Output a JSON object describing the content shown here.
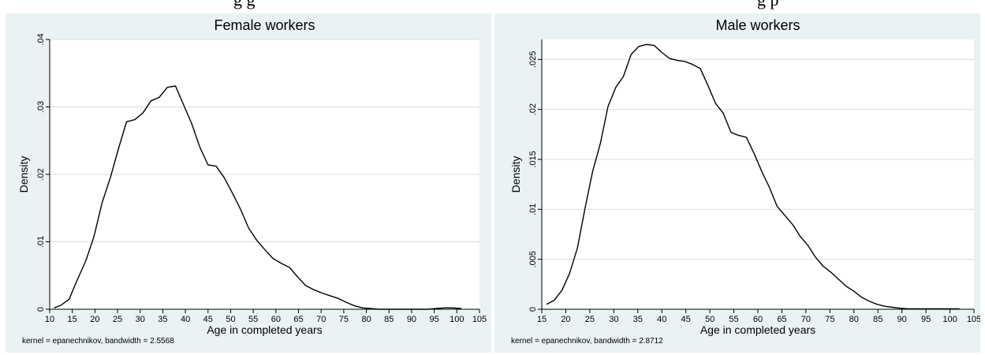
{
  "page": {
    "top_left_fragment": "g   g",
    "top_right_fragment": "g   p"
  },
  "chart_data": [
    {
      "type": "line",
      "title": "Female workers",
      "xlabel": "Age in completed years",
      "ylabel": "Density",
      "note": "kernel = epanechnikov, bandwidth = 2.5568",
      "xlim": [
        10,
        105
      ],
      "ylim": [
        0,
        0.04
      ],
      "xticks": [
        "10",
        "15",
        "20",
        "25",
        "30",
        "35",
        "40",
        "45",
        "50",
        "55",
        "60",
        "65",
        "70",
        "75",
        "80",
        "85",
        "90",
        "95",
        "100",
        "105"
      ],
      "yticks": [
        "0",
        ".01",
        ".02",
        ".03",
        ".04"
      ],
      "ytick_values": [
        0,
        0.01,
        0.02,
        0.03,
        0.04
      ],
      "grid": true,
      "series": [
        {
          "x": [
            11,
            12.5,
            14.3,
            16,
            18,
            19.8,
            21.6,
            23.4,
            25.2,
            27,
            28.8,
            30.6,
            32.4,
            34.2,
            36,
            37.8,
            39.6,
            41.4,
            43.2,
            45,
            46.8,
            48.6,
            50.4,
            52.2,
            54,
            55.8,
            57.6,
            59.4,
            61.2,
            63,
            64.8,
            66.6,
            68.4,
            70.2,
            72,
            73.8,
            75.6,
            77.4,
            79.2,
            81,
            82.8,
            84.6,
            86.4,
            88.2,
            90,
            91.8,
            93.6,
            95.4,
            97.2,
            99,
            101
          ],
          "y": [
            0.0002,
            0.0006,
            0.0015,
            0.0042,
            0.0072,
            0.0108,
            0.0158,
            0.0195,
            0.0238,
            0.0278,
            0.0281,
            0.0291,
            0.0309,
            0.0314,
            0.0329,
            0.0331,
            0.0303,
            0.0275,
            0.024,
            0.0214,
            0.0212,
            0.0195,
            0.0172,
            0.0148,
            0.012,
            0.0102,
            0.0088,
            0.0075,
            0.0068,
            0.0062,
            0.0048,
            0.0035,
            0.0029,
            0.0024,
            0.002,
            0.0016,
            0.001,
            0.0005,
            0.0002,
            0.0001,
            0,
            0,
            0,
            0,
            0,
            0,
            0,
            0.0001,
            0.0002,
            0.0002,
            0.0001
          ]
        }
      ]
    },
    {
      "type": "line",
      "title": "Male workers",
      "xlabel": "Age in completed years",
      "ylabel": "Density",
      "note": "kernel = epanechnikov, bandwidth = 2.8712",
      "xlim": [
        15,
        105
      ],
      "ylim": [
        0,
        0.027
      ],
      "xticks": [
        "15",
        "20",
        "25",
        "30",
        "35",
        "40",
        "45",
        "50",
        "55",
        "60",
        "65",
        "70",
        "75",
        "80",
        "85",
        "90",
        "95",
        "100",
        "105"
      ],
      "yticks": [
        "0",
        ".005",
        ".01",
        ".015",
        ".02",
        ".025"
      ],
      "ytick_values": [
        0,
        0.005,
        0.01,
        0.015,
        0.02,
        0.025
      ],
      "grid": true,
      "series": [
        {
          "x": [
            16,
            17.6,
            19.2,
            20.8,
            22.4,
            24,
            25.6,
            27.2,
            28.8,
            30.4,
            32,
            33.6,
            35.2,
            36.8,
            38.4,
            40,
            41.6,
            43.2,
            44.8,
            46.4,
            48,
            49.6,
            51.2,
            52.8,
            54.4,
            56,
            57.6,
            59.2,
            60.8,
            62.4,
            64,
            65.6,
            67.2,
            68.8,
            70.4,
            72,
            73.6,
            75.2,
            76.8,
            78.4,
            80,
            81.6,
            83.2,
            84.8,
            86.4,
            88,
            89.6,
            91.2,
            92.8,
            94.4,
            96,
            97.6,
            99.2,
            100.8,
            102
          ],
          "y": [
            0.0005,
            0.0009,
            0.0019,
            0.0036,
            0.0061,
            0.0101,
            0.0138,
            0.0166,
            0.0203,
            0.0222,
            0.0233,
            0.0255,
            0.0263,
            0.0265,
            0.0264,
            0.0257,
            0.0251,
            0.0249,
            0.0248,
            0.0245,
            0.0241,
            0.0224,
            0.0206,
            0.0196,
            0.0177,
            0.0174,
            0.0172,
            0.0156,
            0.0138,
            0.0122,
            0.0103,
            0.0094,
            0.0085,
            0.0073,
            0.0064,
            0.0052,
            0.0043,
            0.0037,
            0.003,
            0.0023,
            0.0018,
            0.0012,
            0.0008,
            0.0005,
            0.0003,
            0.0002,
            0.0001,
            5e-05,
            5e-05,
            5e-05,
            5e-05,
            5e-05,
            5e-05,
            5e-05,
            5e-05
          ]
        }
      ]
    }
  ]
}
